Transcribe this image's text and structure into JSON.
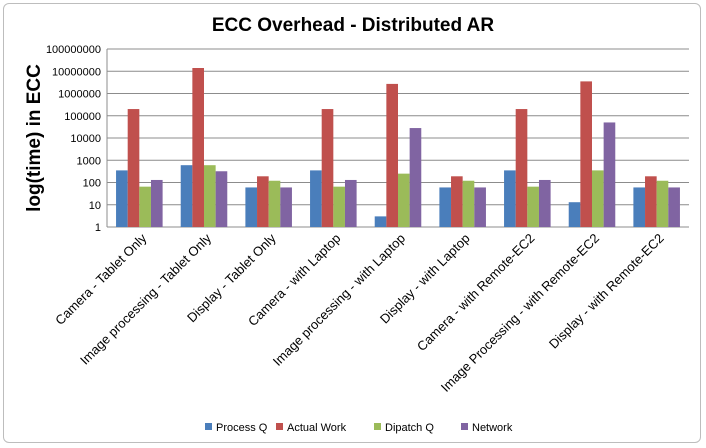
{
  "chart_data": {
    "type": "bar",
    "title": "ECC Overhead - Distributed AR",
    "xlabel": "",
    "ylabel": "log(time) in ECC",
    "yscale": "log",
    "ylim": [
      1,
      100000000
    ],
    "yticks": [
      "1",
      "10",
      "100",
      "1000",
      "10000",
      "100000",
      "1000000",
      "10000000",
      "100000000"
    ],
    "grid": "horizontal",
    "legend_position": "bottom",
    "categories": [
      "Camera - Tablet Only",
      "Image processing - Tablet Only",
      "Display - Tablet Only",
      "Camera - with Laptop",
      "Image processing - with Laptop",
      "Display - with Laptop",
      "Camera - with Remote-EC2",
      "Image Processing - with Remote-EC2",
      "Display - with Remote-EC2"
    ],
    "series": [
      {
        "name": "Process Q",
        "color": "#4a7ebb",
        "values": [
          350,
          600,
          60,
          350,
          3,
          60,
          350,
          13,
          60
        ]
      },
      {
        "name": "Actual Work",
        "color": "#c0504d",
        "values": [
          200000,
          14000000,
          190,
          200000,
          2700000,
          190,
          200000,
          3500000,
          190
        ]
      },
      {
        "name": "Dipatch Q",
        "color": "#9bbb59",
        "values": [
          65,
          600,
          120,
          65,
          250,
          120,
          65,
          350,
          120
        ]
      },
      {
        "name": "Network",
        "color": "#8064a2",
        "values": [
          130,
          320,
          60,
          130,
          28000,
          60,
          130,
          50000,
          60
        ]
      }
    ]
  }
}
